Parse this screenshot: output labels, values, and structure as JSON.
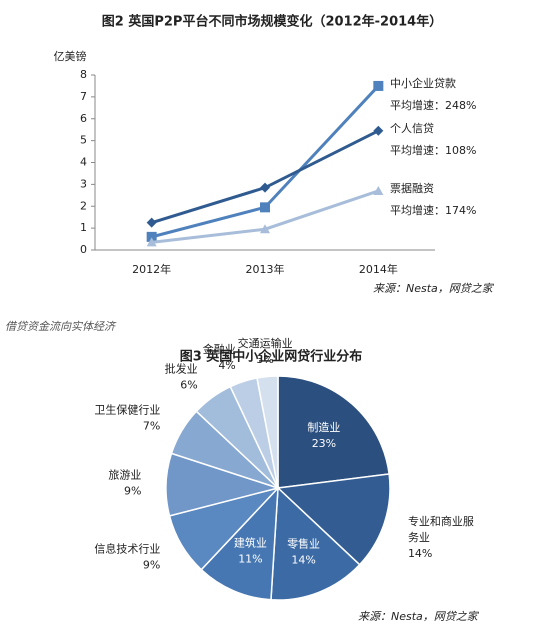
{
  "chart_data": [
    {
      "type": "line",
      "title": "图2 英国P2P平台不同市场规模变化（2012年-2014年）",
      "y_label": "亿美镑",
      "categories": [
        "2012年",
        "2013年",
        "2014年"
      ],
      "ylim": [
        0,
        8
      ],
      "yticks": [
        0,
        1,
        2,
        3,
        4,
        5,
        6,
        7,
        8
      ],
      "series": [
        {
          "name": "中小企业贷款",
          "color": "#4f81bd",
          "marker": "square",
          "growth_label": "平均增速：248%",
          "values": [
            0.6,
            1.95,
            7.5
          ]
        },
        {
          "name": "个人信贷",
          "color": "#2f5b91",
          "marker": "diamond",
          "growth_label": "平均增速：108%",
          "values": [
            1.25,
            2.85,
            5.45
          ]
        },
        {
          "name": "票据融资",
          "color": "#a7bdd9",
          "marker": "triangle",
          "growth_label": "平均增速：174%",
          "values": [
            0.35,
            0.95,
            2.7
          ]
        }
      ],
      "source": "来源：Nesta，网贷之家"
    },
    {
      "type": "pie",
      "title": "图3 英国中小企业网贷行业分布",
      "categories": [
        "制造业",
        "专业和商业服务业",
        "零售业",
        "建筑业",
        "信息技术行业",
        "旅游业",
        "卫生保健行业",
        "批发业",
        "金融业",
        "交通运输业"
      ],
      "values": [
        23,
        14,
        14,
        11,
        9,
        9,
        7,
        6,
        4,
        3
      ],
      "value_labels": [
        "23%",
        "14%",
        "14%",
        "11%",
        "9%",
        "9%",
        "7%",
        "6%",
        "4%",
        "3%"
      ],
      "colors": [
        "#2b4f7e",
        "#335d92",
        "#3b6aa4",
        "#4677b3",
        "#5a88c0",
        "#7097c8",
        "#87a8d1",
        "#a2bcdc",
        "#bccee6",
        "#d5e0ef"
      ],
      "source": "来源：Nesta，网贷之家"
    }
  ],
  "heading": "借贷资金流向实体经济"
}
